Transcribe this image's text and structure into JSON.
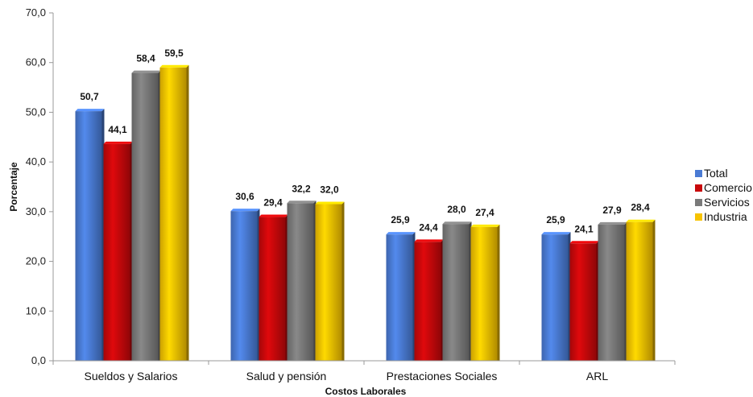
{
  "chart_data": {
    "type": "bar",
    "xlabel": "Costos Laborales",
    "ylabel": "Porcentaje",
    "ylim": [
      0,
      70
    ],
    "yticks": [
      "0,0",
      "10,0",
      "20,0",
      "30,0",
      "40,0",
      "50,0",
      "60,0",
      "70,0"
    ],
    "categories": [
      "Sueldos y Salarios",
      "Salud y pensión",
      "Prestaciones Sociales",
      "ARL"
    ],
    "series": [
      {
        "name": "Total",
        "color": "#4a7bd4",
        "values": [
          50.7,
          30.6,
          25.9,
          25.9
        ],
        "labels": [
          "50,7",
          "30,6",
          "25,9",
          "25,9"
        ]
      },
      {
        "name": "Comercio",
        "color": "#c8080b",
        "values": [
          44.1,
          29.4,
          24.4,
          24.1
        ],
        "labels": [
          "44,1",
          "29,4",
          "24,4",
          "24,1"
        ]
      },
      {
        "name": "Servicios",
        "color": "#7a7a7a",
        "values": [
          58.4,
          32.2,
          28.0,
          27.9
        ],
        "labels": [
          "58,4",
          "32,2",
          "28,0",
          "27,9"
        ]
      },
      {
        "name": "Industria",
        "color": "#f7c300",
        "values": [
          59.5,
          32.0,
          27.4,
          28.4
        ],
        "labels": [
          "59,5",
          "32,0",
          "27,4",
          "28,4"
        ]
      }
    ],
    "legend_position": "right",
    "grid": false
  }
}
